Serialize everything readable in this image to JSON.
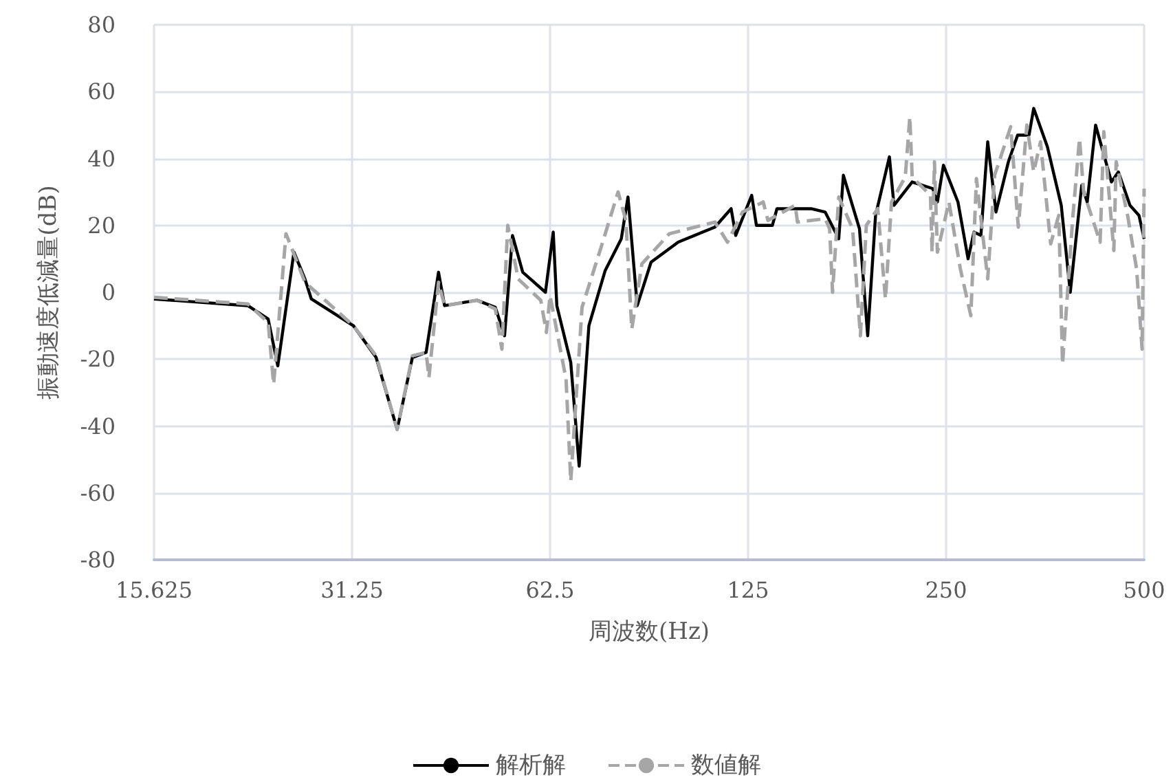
{
  "chart_data": {
    "type": "line",
    "xlabel": "周波数(Hz)",
    "ylabel": "振動速度低減量(dB)",
    "log": "x",
    "xlim": [
      15.625,
      500
    ],
    "xticks": [
      15.625,
      31.25,
      62.5,
      125,
      250,
      500
    ],
    "ylim": [
      -80,
      80
    ],
    "yticks": [
      -80,
      -60,
      -40,
      -20,
      0,
      20,
      40,
      60,
      80
    ],
    "grid": true,
    "legend": "bottom",
    "marker": "none",
    "series": [
      {
        "name": "解析解",
        "color": "#000000",
        "line_style": "solid",
        "x": [
          15.625,
          21.7,
          23.3,
          24.1,
          25.5,
          26.5,
          27.1,
          31.4,
          34.0,
          36.6,
          38.6,
          40.5,
          42.3,
          43.2,
          48.4,
          51.6,
          53.3,
          54.8,
          56.8,
          61.5,
          63.2,
          64.0,
          67.2,
          69.2,
          71.6,
          75.8,
          80.2,
          82.1,
          84.8,
          89.0,
          97.9,
          111.3,
          117.8,
          119.7,
          126.6,
          128.7,
          136.1,
          138.3,
          155.9,
          163.7,
          171.7,
          174.5,
          184.6,
          190.0,
          195.3,
          205.0,
          208.3,
          222.0,
          238.6,
          242.5,
          247.7,
          260.6,
          270.0,
          275.6,
          282.4,
          289.2,
          297.7,
          310.9,
          321.1,
          334.2,
          339.7,
          356.4,
          374.1,
          386.1,
          401.9,
          409.7,
          421.9,
          446.0,
          456.9,
          475.8,
          491.1,
          500
        ],
        "values": [
          -2,
          -4,
          -8,
          -22,
          12,
          4,
          -2,
          -10,
          -19.5,
          -41,
          -19.5,
          -18,
          6,
          -4,
          -2.4,
          -4.5,
          -13,
          17,
          6,
          0,
          18,
          -4,
          -21,
          -52,
          -10,
          6.5,
          16,
          28.5,
          -4,
          9,
          15,
          19.5,
          25,
          17,
          29,
          20,
          20,
          25,
          25,
          24,
          16,
          35,
          19,
          -13,
          23,
          40.5,
          26,
          33,
          31,
          27,
          38,
          27,
          10,
          18,
          17,
          45,
          24,
          39,
          47,
          47,
          55,
          43.5,
          26,
          0,
          32,
          27,
          50,
          33,
          36,
          26,
          23,
          16
        ]
      },
      {
        "name": "数値解",
        "color": "#a6a6a6",
        "line_style": "dashed",
        "x": [
          15.625,
          21.7,
          23.3,
          23.75,
          24.8,
          26.5,
          31.4,
          34.0,
          36.6,
          38.6,
          40.5,
          40.9,
          42.3,
          43.2,
          48.4,
          51.6,
          52.8,
          53.9,
          55.9,
          60.5,
          61.7,
          62.5,
          66.1,
          67.2,
          69.9,
          74.6,
          79.3,
          81.5,
          83.2,
          86.2,
          94.9,
          111.3,
          116.3,
          122.6,
          131.8,
          134.0,
          147.4,
          148.6,
          163.7,
          166.3,
          168.0,
          171.7,
          180.2,
          185.2,
          189.1,
          196.8,
          202.2,
          206.5,
          216.7,
          220.2,
          222.0,
          236.7,
          238.0,
          240.0,
          242.5,
          252.5,
          262.8,
          272.6,
          278.0,
          289.2,
          296.3,
          313.4,
          321.9,
          331.7,
          339.7,
          347.9,
          360.5,
          370.9,
          375.8,
          389.2,
          398.8,
          404.6,
          428.6,
          434.2,
          449.7,
          453.4,
          471.9,
          487.0,
          496.5,
          500
        ],
        "values": [
          -1.5,
          -3.5,
          -9,
          -27.5,
          17.5,
          3,
          -10,
          -19,
          -41,
          -19,
          -18,
          -25.5,
          3,
          -4,
          -2.4,
          -5,
          -17,
          20,
          4,
          -2.4,
          -12,
          -1,
          -26,
          -56.5,
          -4.5,
          13,
          30,
          21.5,
          -11,
          8.5,
          17.5,
          21,
          15,
          24,
          27,
          21.5,
          26,
          21,
          22,
          19,
          0,
          28.5,
          19,
          -13,
          20,
          25,
          -2,
          27,
          34.5,
          52.5,
          34.5,
          29,
          12,
          39,
          12,
          27,
          7,
          -7,
          34,
          4,
          35,
          49.5,
          19.5,
          50,
          36,
          45,
          14.5,
          23,
          -21.5,
          21.5,
          46,
          30,
          15,
          48,
          12.5,
          39,
          23,
          7,
          -17,
          31
        ]
      }
    ]
  }
}
